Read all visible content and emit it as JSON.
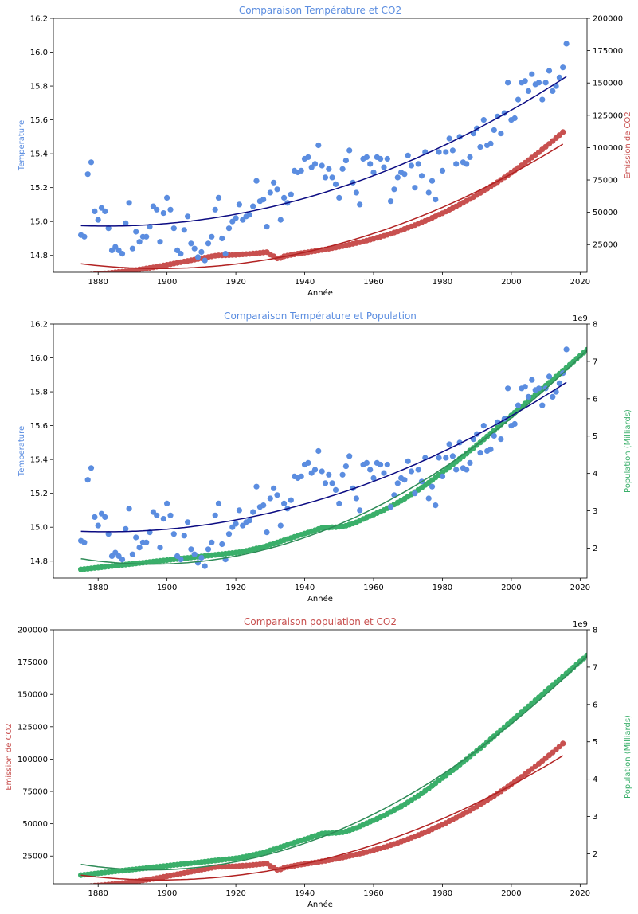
{
  "colors": {
    "temperature": "#5B8DE0",
    "co2": "#C8504F",
    "population": "#3AAF6A",
    "temp_fit": "#0B0B82",
    "co2_fit": "#B22222",
    "pop_fit": "#2E8B57"
  },
  "chart_data": [
    {
      "type": "scatter",
      "title": "Comparaison Température et CO2",
      "xlabel": "Année",
      "ylabel_left": "Temperature",
      "ylabel_right": "Emission de CO2",
      "xlim": [
        1867,
        2022
      ],
      "xticks": [
        1880,
        1900,
        1920,
        1940,
        1960,
        1980,
        2000,
        2020
      ],
      "ylim_left": [
        14.7,
        16.2
      ],
      "yticks_left": [
        "14.8",
        "15.0",
        "15.2",
        "15.4",
        "15.6",
        "15.8",
        "16.0",
        "16.2"
      ],
      "ylim_right": [
        3600,
        200000
      ],
      "yticks_right": [
        "25000",
        "50000",
        "75000",
        "100000",
        "125000",
        "150000",
        "175000",
        "200000"
      ],
      "right_exponent": "",
      "left_series": "temperature",
      "right_series": "co2",
      "grid": false
    },
    {
      "type": "scatter",
      "title": "Comparaison Température et Population",
      "xlabel": "Année",
      "ylabel_left": "Temperature",
      "ylabel_right": "Population (Milliards)",
      "xlim": [
        1867,
        2022
      ],
      "xticks": [
        1880,
        1900,
        1920,
        1940,
        1960,
        1980,
        2000,
        2020
      ],
      "ylim_left": [
        14.7,
        16.2
      ],
      "yticks_left": [
        "14.8",
        "15.0",
        "15.2",
        "15.4",
        "15.6",
        "15.8",
        "16.0",
        "16.2"
      ],
      "ylim_right": [
        1.2,
        8.0
      ],
      "yticks_right": [
        "2",
        "3",
        "4",
        "5",
        "6",
        "7",
        "8"
      ],
      "right_exponent": "1e9",
      "left_series": "temperature",
      "right_series": "population",
      "grid": false
    },
    {
      "type": "scatter",
      "title": "Comparaison population et CO2",
      "xlabel": "Année",
      "ylabel_left": "Emission de CO2",
      "ylabel_right": "Population (Milliards)",
      "xlim": [
        1867,
        2022
      ],
      "xticks": [
        1880,
        1900,
        1920,
        1940,
        1960,
        1980,
        2000,
        2020
      ],
      "ylim_left": [
        3600,
        200000
      ],
      "yticks_left": [
        "25000",
        "50000",
        "75000",
        "100000",
        "125000",
        "150000",
        "175000",
        "200000"
      ],
      "ylim_right": [
        1.2,
        8.0
      ],
      "yticks_right": [
        "2",
        "3",
        "4",
        "5",
        "6",
        "7",
        "8"
      ],
      "right_exponent": "1e9",
      "left_series": "co2",
      "right_series": "population",
      "grid": false
    }
  ],
  "series": {
    "temperature": {
      "x_start": 1875,
      "values": [
        14.92,
        14.91,
        15.28,
        15.35,
        15.06,
        15.01,
        15.08,
        15.06,
        14.96,
        14.83,
        14.85,
        14.83,
        14.81,
        14.99,
        15.11,
        14.84,
        14.94,
        14.88,
        14.91,
        14.91,
        14.97,
        15.09,
        15.07,
        14.88,
        15.05,
        15.14,
        15.07,
        14.96,
        14.83,
        14.81,
        14.95,
        15.03,
        14.87,
        14.84,
        14.79,
        14.82,
        14.77,
        14.87,
        14.91,
        15.07,
        15.14,
        14.9,
        14.81,
        14.96,
        15.0,
        15.02,
        15.1,
        15.01,
        15.03,
        15.04,
        15.09,
        15.24,
        15.12,
        15.13,
        14.97,
        15.17,
        15.23,
        15.19,
        15.01,
        15.14,
        15.11,
        15.16,
        15.3,
        15.29,
        15.3,
        15.37,
        15.38,
        15.32,
        15.34,
        15.45,
        15.33,
        15.26,
        15.31,
        15.26,
        15.22,
        15.14,
        15.31,
        15.36,
        15.42,
        15.23,
        15.17,
        15.1,
        15.37,
        15.38,
        15.34,
        15.29,
        15.38,
        15.37,
        15.32,
        15.37,
        15.12,
        15.19,
        15.26,
        15.29,
        15.28,
        15.39,
        15.33,
        15.2,
        15.34,
        15.27,
        15.41,
        15.17,
        15.24,
        15.13,
        15.41,
        15.3,
        15.41,
        15.49,
        15.42,
        15.34,
        15.5,
        15.35,
        15.34,
        15.38,
        15.52,
        15.55,
        15.44,
        15.6,
        15.45,
        15.46,
        15.54,
        15.62,
        15.52,
        15.64,
        15.82,
        15.6,
        15.61,
        15.72,
        15.82,
        15.83,
        15.77,
        15.87,
        15.81,
        15.82,
        15.72,
        15.82,
        15.89,
        15.77,
        15.8,
        15.85,
        15.91,
        16.05
      ]
    },
    "co2": {
      "x_start": 1875,
      "values": [
        950,
        1200,
        1500,
        1800,
        2100,
        2300,
        2500,
        2800,
        3000,
        3300,
        3600,
        3900,
        4100,
        4400,
        4700,
        5100,
        5400,
        5800,
        6200,
        6600,
        7000,
        7400,
        7900,
        8400,
        8900,
        9400,
        9900,
        10400,
        10900,
        11400,
        11900,
        12400,
        12900,
        13400,
        13900,
        14500,
        14900,
        15400,
        15900,
        16400,
        16700,
        16700,
        16800,
        16900,
        17000,
        17100,
        17300,
        17500,
        17700,
        17900,
        18100,
        18300,
        18600,
        18900,
        19200,
        17300,
        16000,
        14400,
        14700,
        16000,
        16500,
        17000,
        17500,
        18000,
        18400,
        18800,
        19200,
        19600,
        20000,
        20400,
        20900,
        21300,
        21800,
        22300,
        22800,
        23300,
        23800,
        24400,
        25000,
        25600,
        26200,
        26800,
        27400,
        28100,
        28800,
        29500,
        30300,
        31000,
        31800,
        32600,
        33400,
        34300,
        35200,
        36100,
        37100,
        38100,
        39100,
        40100,
        41200,
        42300,
        43400,
        44500,
        45700,
        46900,
        48100,
        49300,
        50600,
        51900,
        53200,
        54600,
        56000,
        57400,
        58900,
        60300,
        61800,
        63400,
        65000,
        66600,
        68200,
        69900,
        71600,
        73300,
        75100,
        76900,
        78700,
        80600,
        82400,
        84300,
        86300,
        88300,
        90300,
        92300,
        94400,
        96400,
        98600,
        100700,
        102900,
        105100,
        107400,
        109700,
        112000
      ]
    },
    "population": {
      "x_start": 1875,
      "values": [
        1.43,
        1.44,
        1.45,
        1.46,
        1.47,
        1.48,
        1.49,
        1.5,
        1.51,
        1.52,
        1.53,
        1.54,
        1.55,
        1.56,
        1.57,
        1.58,
        1.59,
        1.6,
        1.61,
        1.62,
        1.63,
        1.64,
        1.65,
        1.66,
        1.67,
        1.68,
        1.69,
        1.7,
        1.71,
        1.72,
        1.73,
        1.74,
        1.75,
        1.76,
        1.77,
        1.78,
        1.79,
        1.8,
        1.81,
        1.82,
        1.83,
        1.84,
        1.85,
        1.86,
        1.87,
        1.88,
        1.89,
        1.91,
        1.93,
        1.95,
        1.97,
        1.99,
        2.01,
        2.03,
        2.06,
        2.09,
        2.12,
        2.15,
        2.18,
        2.21,
        2.24,
        2.27,
        2.3,
        2.33,
        2.36,
        2.39,
        2.42,
        2.45,
        2.48,
        2.51,
        2.54,
        2.55,
        2.55,
        2.56,
        2.56,
        2.57,
        2.58,
        2.6,
        2.63,
        2.66,
        2.69,
        2.74,
        2.78,
        2.82,
        2.86,
        2.9,
        2.94,
        2.98,
        3.02,
        3.07,
        3.12,
        3.17,
        3.22,
        3.27,
        3.32,
        3.38,
        3.44,
        3.5,
        3.56,
        3.62,
        3.69,
        3.75,
        3.82,
        3.89,
        3.96,
        4.03,
        4.1,
        4.17,
        4.24,
        4.31,
        4.39,
        4.46,
        4.53,
        4.61,
        4.68,
        4.76,
        4.83,
        4.91,
        4.99,
        5.07,
        5.15,
        5.23,
        5.31,
        5.39,
        5.47,
        5.55,
        5.63,
        5.71,
        5.79,
        5.87,
        5.95,
        6.03,
        6.11,
        6.19,
        6.27,
        6.35,
        6.43,
        6.51,
        6.59,
        6.67,
        6.75,
        6.83,
        6.91,
        6.99,
        7.07,
        7.15,
        7.23,
        7.31,
        7.38
      ]
    }
  }
}
